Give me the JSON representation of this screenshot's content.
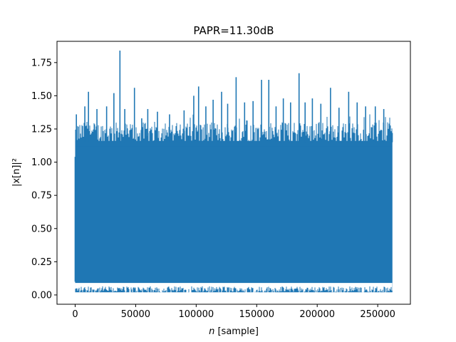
{
  "chart_data": {
    "type": "line",
    "title": "PAPR=11.30dB",
    "xlabel": "n [sample]",
    "ylabel": "|x[n]|²",
    "xlim": [
      -15000,
      277000
    ],
    "ylim": [
      -0.07,
      1.91
    ],
    "xticks": [
      0,
      50000,
      100000,
      150000,
      200000,
      250000
    ],
    "xtick_labels": [
      "0",
      "50000",
      "100000",
      "150000",
      "200000",
      "250000"
    ],
    "yticks": [
      0.0,
      0.25,
      0.5,
      0.75,
      1.0,
      1.25,
      1.5,
      1.75
    ],
    "ytick_labels": [
      "0.00",
      "0.25",
      "0.50",
      "0.75",
      "1.00",
      "1.25",
      "1.50",
      "1.75"
    ],
    "grid": false,
    "series": [
      {
        "color": "#1f77b4",
        "x_range": [
          0,
          262143
        ],
        "band_low": 0.02,
        "band_high_typical": 1.3,
        "peaks": [
          {
            "x": 1000,
            "y": 1.36
          },
          {
            "x": 8000,
            "y": 1.42
          },
          {
            "x": 11000,
            "y": 1.53
          },
          {
            "x": 18000,
            "y": 1.4
          },
          {
            "x": 26000,
            "y": 1.42
          },
          {
            "x": 32000,
            "y": 1.52
          },
          {
            "x": 37000,
            "y": 1.84
          },
          {
            "x": 41000,
            "y": 1.4
          },
          {
            "x": 49000,
            "y": 1.56
          },
          {
            "x": 55000,
            "y": 1.33
          },
          {
            "x": 60000,
            "y": 1.4
          },
          {
            "x": 68000,
            "y": 1.38
          },
          {
            "x": 78000,
            "y": 1.36
          },
          {
            "x": 90000,
            "y": 1.39
          },
          {
            "x": 98000,
            "y": 1.5
          },
          {
            "x": 102000,
            "y": 1.57
          },
          {
            "x": 108000,
            "y": 1.42
          },
          {
            "x": 114000,
            "y": 1.47
          },
          {
            "x": 121000,
            "y": 1.53
          },
          {
            "x": 126000,
            "y": 1.44
          },
          {
            "x": 133000,
            "y": 1.64
          },
          {
            "x": 140000,
            "y": 1.45
          },
          {
            "x": 147000,
            "y": 1.46
          },
          {
            "x": 154000,
            "y": 1.62
          },
          {
            "x": 160000,
            "y": 1.62
          },
          {
            "x": 166000,
            "y": 1.42
          },
          {
            "x": 172000,
            "y": 1.48
          },
          {
            "x": 178000,
            "y": 1.45
          },
          {
            "x": 185000,
            "y": 1.67
          },
          {
            "x": 190000,
            "y": 1.45
          },
          {
            "x": 196000,
            "y": 1.48
          },
          {
            "x": 203000,
            "y": 1.44
          },
          {
            "x": 211000,
            "y": 1.56
          },
          {
            "x": 218000,
            "y": 1.41
          },
          {
            "x": 226000,
            "y": 1.53
          },
          {
            "x": 233000,
            "y": 1.45
          },
          {
            "x": 240000,
            "y": 1.42
          },
          {
            "x": 248000,
            "y": 1.42
          },
          {
            "x": 255000,
            "y": 1.4
          },
          {
            "x": 262000,
            "y": 1.22
          }
        ]
      }
    ]
  }
}
